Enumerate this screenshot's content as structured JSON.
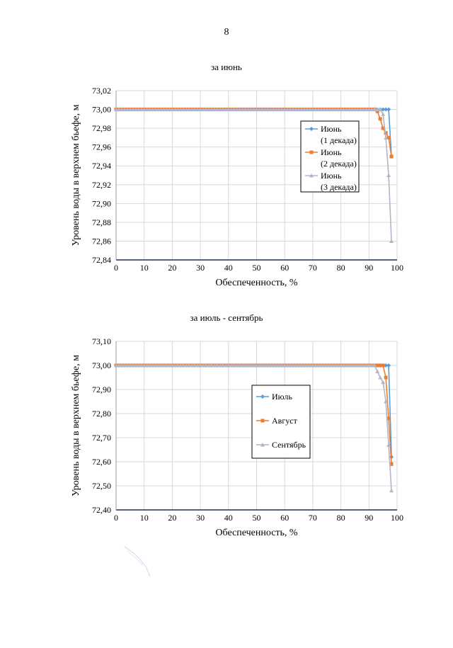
{
  "page": {
    "number": "8"
  },
  "charts": [
    {
      "heading": "за июнь",
      "chart_data": {
        "type": "line",
        "title": "за июнь",
        "xlabel": "Обеспеченность, %",
        "ylabel": "Уровень воды в верхнем бьефе, м",
        "xlim": [
          0,
          100
        ],
        "ylim": [
          72.84,
          73.02
        ],
        "xticks": [
          "0",
          "10",
          "20",
          "30",
          "40",
          "50",
          "60",
          "70",
          "80",
          "90",
          "100"
        ],
        "yticks": [
          "72,84",
          "72,86",
          "72,88",
          "72,90",
          "72,92",
          "72,94",
          "72,96",
          "72,98",
          "73,00",
          "73,02"
        ],
        "grid": true,
        "legend_position": "right",
        "series": [
          {
            "name": "Июнь (1 декада)",
            "legend_lines": [
              "Июнь",
              "(1 декада)"
            ],
            "color": "#5b9bd5",
            "marker": "diamond",
            "x": [
              0,
              97,
              98
            ],
            "y": [
              73.0,
              73.0,
              72.95
            ]
          },
          {
            "name": "Июнь (2 декада)",
            "legend_lines": [
              "Июнь",
              "(2 декада)"
            ],
            "color": "#ed7d31",
            "marker": "square",
            "x": [
              0,
              92,
              93,
              94,
              95,
              96,
              97,
              98
            ],
            "y": [
              73.0,
              73.0,
              72.998,
              72.99,
              72.98,
              72.975,
              72.97,
              72.95
            ]
          },
          {
            "name": "Июнь (3 декада)",
            "legend_lines": [
              "Июнь",
              "(3 декада)"
            ],
            "color": "#b4b4c8",
            "marker": "triangle",
            "x": [
              0,
              93,
              94,
              95,
              96,
              97,
              98
            ],
            "y": [
              73.0,
              73.0,
              73.0,
              72.995,
              72.97,
              72.93,
              72.86
            ]
          }
        ]
      }
    },
    {
      "heading": "за июль - сентябрь",
      "chart_data": {
        "type": "line",
        "title": "за июль - сентябрь",
        "xlabel": "Обеспеченность, %",
        "ylabel": "Уровень воды в верхнем бьефе, м",
        "xlim": [
          0,
          100
        ],
        "ylim": [
          72.4,
          73.1
        ],
        "xticks": [
          "0",
          "10",
          "20",
          "30",
          "40",
          "50",
          "60",
          "70",
          "80",
          "90",
          "100"
        ],
        "yticks": [
          "72,40",
          "72,50",
          "72,60",
          "72,70",
          "72,80",
          "72,90",
          "73,00",
          "73,10"
        ],
        "grid": true,
        "legend_position": "center-right",
        "series": [
          {
            "name": "Июль",
            "legend_lines": [
              "Июль"
            ],
            "color": "#5b9bd5",
            "marker": "diamond",
            "x": [
              0,
              97,
              98
            ],
            "y": [
              73.0,
              73.0,
              72.62
            ]
          },
          {
            "name": "Август",
            "legend_lines": [
              "Август"
            ],
            "color": "#ed7d31",
            "marker": "square",
            "x": [
              0,
              95,
              96,
              97,
              98
            ],
            "y": [
              73.0,
              73.0,
              72.95,
              72.78,
              72.59
            ]
          },
          {
            "name": "Сентябрь",
            "legend_lines": [
              "Сентябрь"
            ],
            "color": "#b4b4c8",
            "marker": "triangle",
            "x": [
              0,
              92,
              94,
              95,
              96,
              97,
              98
            ],
            "y": [
              73.0,
              73.0,
              72.95,
              72.93,
              72.85,
              72.67,
              72.48
            ]
          }
        ]
      }
    }
  ]
}
